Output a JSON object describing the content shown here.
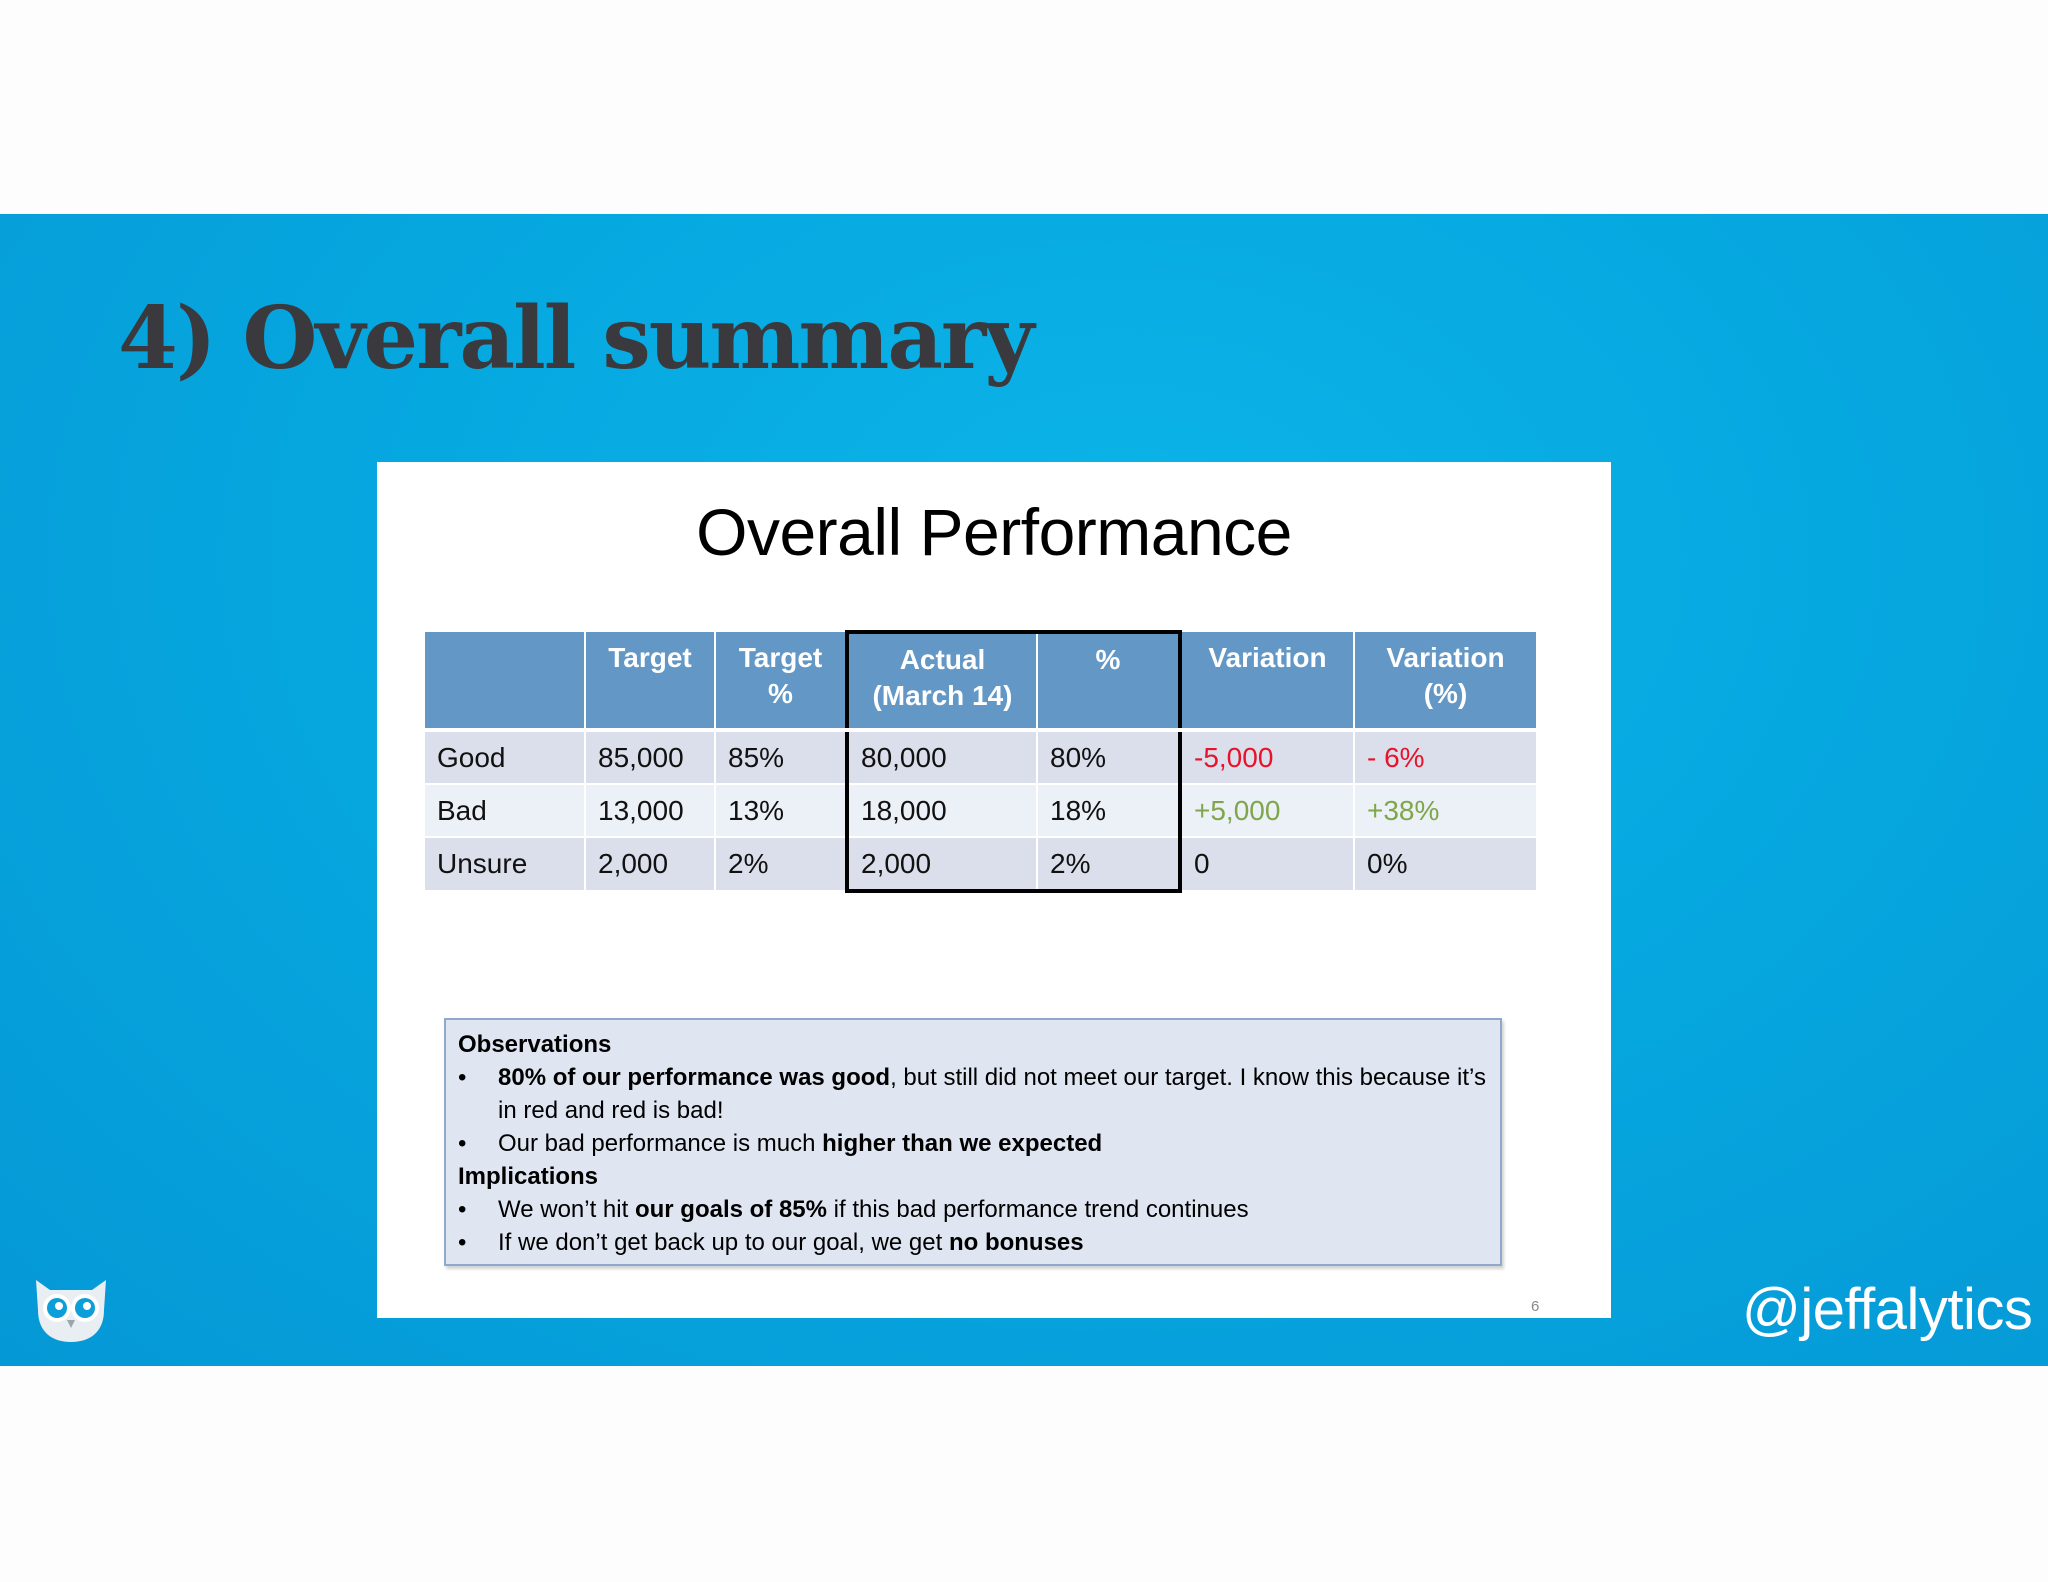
{
  "slide": {
    "title": "4) Overall summary",
    "handle": "@jeffalytics",
    "logo_icon": "owl-icon"
  },
  "embedded_slide": {
    "title": "Overall Performance",
    "page_number": "6",
    "table": {
      "header_bg": "#6397c6",
      "columns": [
        "",
        "Target",
        "Target\n%",
        "Actual\n(March 14)",
        "%",
        "Variation",
        "Variation\n(%)"
      ],
      "rows": [
        {
          "label": "Good",
          "target": "85,000",
          "target_pct": "85%",
          "actual": "80,000",
          "actual_pct": "80%",
          "variation": "-5,000",
          "variation_pct": "- 6%",
          "status": "negative"
        },
        {
          "label": "Bad",
          "target": "13,000",
          "target_pct": "13%",
          "actual": "18,000",
          "actual_pct": "18%",
          "variation": "+5,000",
          "variation_pct": "+38%",
          "status": "positive"
        },
        {
          "label": "Unsure",
          "target": "2,000",
          "target_pct": "2%",
          "actual": "2,000",
          "actual_pct": "2%",
          "variation": "0",
          "variation_pct": "0%",
          "status": "neutral"
        }
      ],
      "negative_color": "#e8132a",
      "positive_color": "#7fa64a"
    },
    "observations": {
      "heading": "Observations",
      "items": [
        {
          "bold": "80% of our performance was good",
          "rest": ", but still did not meet our target. I know this because it’s in red and red is bad!"
        },
        {
          "plain": "Our bad performance is much ",
          "bold": "higher than we expected"
        }
      ]
    },
    "implications": {
      "heading": "Implications",
      "items": [
        {
          "plain": "We won’t hit ",
          "bold": "our goals of 85%",
          "rest": " if this bad performance trend continues"
        },
        {
          "plain": "If we don’t get back up to our goal, we get ",
          "bold": "no bonuses"
        }
      ]
    }
  }
}
